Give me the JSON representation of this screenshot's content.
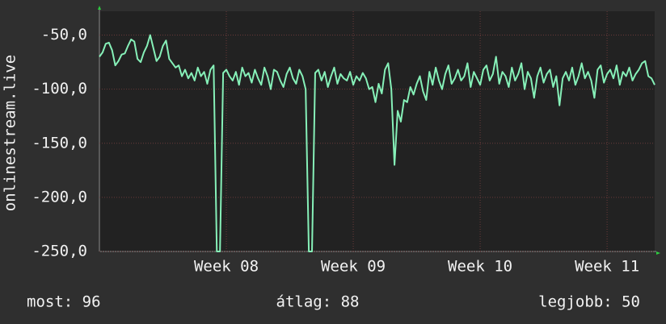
{
  "chart_data": {
    "type": "line",
    "y_label": "onlinestream.live",
    "categories": [
      null,
      null,
      null,
      null,
      null,
      null,
      null,
      null,
      null,
      null,
      null,
      null,
      null,
      null,
      null,
      null,
      null,
      null,
      null,
      null,
      null,
      null,
      null,
      null,
      null,
      null,
      null,
      null,
      null,
      null,
      null,
      null,
      null,
      null,
      null,
      null,
      null,
      null,
      null,
      null,
      "Week 08",
      null,
      null,
      null,
      null,
      null,
      null,
      null,
      null,
      null,
      null,
      null,
      null,
      null,
      null,
      null,
      null,
      null,
      null,
      null,
      null,
      null,
      null,
      null,
      null,
      null,
      null,
      null,
      null,
      null,
      null,
      null,
      null,
      null,
      null,
      null,
      null,
      null,
      null,
      null,
      "Week 09",
      null,
      null,
      null,
      null,
      null,
      null,
      null,
      null,
      null,
      null,
      null,
      null,
      null,
      null,
      null,
      null,
      null,
      null,
      null,
      null,
      null,
      null,
      null,
      null,
      null,
      null,
      null,
      null,
      null,
      null,
      null,
      null,
      null,
      null,
      null,
      null,
      null,
      null,
      null,
      "Week 10",
      null,
      null,
      null,
      null,
      null,
      null,
      null,
      null,
      null,
      null,
      null,
      null,
      null,
      null,
      null,
      null,
      null,
      null,
      null,
      null,
      null,
      null,
      null,
      null,
      null,
      null,
      null,
      null,
      null,
      null,
      null,
      null,
      null,
      null,
      null,
      null,
      null,
      null,
      null,
      "Week 11",
      null,
      null,
      null,
      null,
      null,
      null,
      null,
      null,
      null,
      null,
      null,
      null,
      null,
      null,
      null
    ],
    "series": [
      {
        "color": "#86f0b8",
        "values": [
          -70,
          -66,
          -58,
          -57,
          -64,
          -78,
          -74,
          -68,
          -67,
          -60,
          -54,
          -56,
          -72,
          -75,
          -66,
          -60,
          -50,
          -62,
          -74,
          -70,
          -60,
          -55,
          -72,
          -76,
          -80,
          -78,
          -88,
          -82,
          -90,
          -85,
          -92,
          -80,
          -88,
          -84,
          -95,
          -82,
          -78,
          -250,
          -250,
          -85,
          -82,
          -88,
          -92,
          -84,
          -96,
          -80,
          -88,
          -85,
          -94,
          -82,
          -90,
          -96,
          -80,
          -88,
          -100,
          -82,
          -84,
          -92,
          -98,
          -86,
          -80,
          -90,
          -95,
          -82,
          -88,
          -100,
          -250,
          -250,
          -85,
          -82,
          -92,
          -84,
          -98,
          -88,
          -80,
          -95,
          -86,
          -90,
          -92,
          -84,
          -96,
          -88,
          -92,
          -85,
          -90,
          -100,
          -98,
          -112,
          -95,
          -104,
          -82,
          -76,
          -100,
          -170,
          -120,
          -130,
          -110,
          -112,
          -98,
          -105,
          -95,
          -88,
          -102,
          -110,
          -84,
          -96,
          -80,
          -92,
          -100,
          -86,
          -78,
          -95,
          -90,
          -82,
          -92,
          -88,
          -76,
          -98,
          -84,
          -90,
          -96,
          -82,
          -78,
          -92,
          -86,
          -70,
          -95,
          -84,
          -88,
          -98,
          -80,
          -92,
          -86,
          -76,
          -100,
          -84,
          -90,
          -108,
          -88,
          -80,
          -94,
          -86,
          -82,
          -98,
          -88,
          -115,
          -90,
          -84,
          -92,
          -80,
          -96,
          -88,
          -76,
          -90,
          -84,
          -92,
          -108,
          -82,
          -78,
          -94,
          -86,
          -82,
          -90,
          -78,
          -96,
          -84,
          -88,
          -80,
          -92,
          -86,
          -82,
          -76,
          -74,
          -88,
          -90,
          -96
        ]
      }
    ],
    "ylim": [
      -250,
      -28
    ],
    "yticks": [
      {
        "value": -250,
        "label": "-250,0"
      },
      {
        "value": -200,
        "label": "-200,0"
      },
      {
        "value": -150,
        "label": "-150,0"
      },
      {
        "value": -100,
        "label": "-100,0"
      },
      {
        "value": -50,
        "label": "-50,0"
      }
    ],
    "grid": true,
    "summary": [
      "most: 96",
      "átlag: 88",
      "legjobb: 50"
    ]
  }
}
